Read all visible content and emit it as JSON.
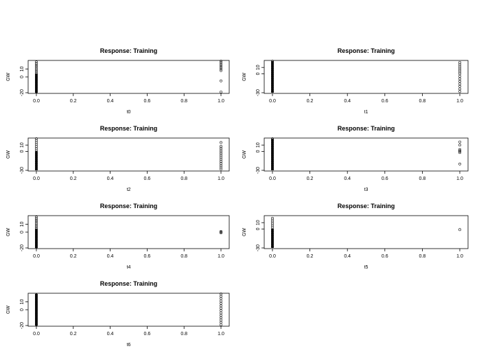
{
  "chart_data": [
    {
      "type": "scatter",
      "title": "Response: Training",
      "xlabel": "t0",
      "ylabel": "GW",
      "xlim": [
        0,
        1
      ],
      "ylim": [
        -20,
        20
      ],
      "xticks": [
        "0.0",
        "0.2",
        "0.4",
        "0.6",
        "0.8",
        "1.0"
      ],
      "yticks": [
        "-20",
        "0",
        "10"
      ],
      "points": [
        {
          "x": 0,
          "y": [
            -19,
            -17,
            -15,
            -13,
            -11,
            -9,
            -7,
            -5,
            -3,
            -1,
            1,
            3,
            5,
            7,
            9,
            11,
            13,
            15,
            17,
            19
          ]
        },
        {
          "x": 1,
          "y": [
            -19,
            -5,
            8,
            10,
            12,
            14,
            16,
            18,
            20
          ]
        }
      ]
    },
    {
      "type": "scatter",
      "title": "Response: Training",
      "xlabel": "t1",
      "ylabel": "GW",
      "xlim": [
        0,
        1
      ],
      "ylim": [
        -30,
        20
      ],
      "xticks": [
        "0.0",
        "0.2",
        "0.4",
        "0.6",
        "0.8",
        "1.0"
      ],
      "yticks": [
        "-30",
        "0",
        "10"
      ],
      "points": [
        {
          "x": 0,
          "y": [
            -28,
            -25,
            -22,
            -19,
            -16,
            -13,
            -10,
            -7,
            -4,
            -1,
            2,
            5,
            8,
            11,
            14,
            17,
            20
          ]
        },
        {
          "x": 1,
          "y": [
            -28,
            -24,
            -20,
            -16,
            -12,
            -8,
            -4,
            0,
            3,
            6,
            9,
            12,
            15,
            18
          ]
        }
      ]
    },
    {
      "type": "scatter",
      "title": "Response: Training",
      "xlabel": "t2",
      "ylabel": "GW",
      "xlim": [
        0,
        1
      ],
      "ylim": [
        -30,
        20
      ],
      "xticks": [
        "0.0",
        "0.2",
        "0.4",
        "0.6",
        "0.8",
        "1.0"
      ],
      "yticks": [
        "-30",
        "0",
        "10"
      ],
      "points": [
        {
          "x": 0,
          "y": [
            -28,
            -25,
            -22,
            -19,
            -16,
            -13,
            -10,
            -7,
            -4,
            -1,
            2,
            5,
            8,
            11,
            14,
            17,
            20
          ]
        },
        {
          "x": 1,
          "y": [
            -28,
            -25,
            -22,
            -19,
            -16,
            -13,
            -10,
            -7,
            -4,
            -1,
            2,
            5,
            8,
            14
          ]
        }
      ]
    },
    {
      "type": "scatter",
      "title": "Response: Training",
      "xlabel": "t3",
      "ylabel": "GW",
      "xlim": [
        0,
        1
      ],
      "ylim": [
        -30,
        20
      ],
      "xticks": [
        "0.0",
        "0.2",
        "0.4",
        "0.6",
        "0.8",
        "1.0"
      ],
      "yticks": [
        "-30",
        "0",
        "10"
      ],
      "points": [
        {
          "x": 0,
          "y": [
            -28,
            -25,
            -22,
            -19,
            -16,
            -13,
            -10,
            -7,
            -4,
            -1,
            2,
            5,
            8,
            11,
            14,
            17,
            20
          ]
        },
        {
          "x": 1,
          "y": [
            -20,
            -2,
            0,
            1,
            3,
            10,
            15
          ]
        }
      ]
    },
    {
      "type": "scatter",
      "title": "Response: Training",
      "xlabel": "t4",
      "ylabel": "GW",
      "xlim": [
        0,
        1
      ],
      "ylim": [
        -20,
        20
      ],
      "xticks": [
        "0.0",
        "0.2",
        "0.4",
        "0.6",
        "0.8",
        "1.0"
      ],
      "yticks": [
        "-20",
        "0",
        "10"
      ],
      "points": [
        {
          "x": 0,
          "y": [
            -19,
            -17,
            -15,
            -13,
            -11,
            -9,
            -7,
            -5,
            -3,
            -1,
            1,
            3,
            5,
            7,
            9,
            11,
            13,
            15,
            17,
            19
          ]
        },
        {
          "x": 1,
          "y": [
            -1,
            0,
            1
          ]
        }
      ]
    },
    {
      "type": "scatter",
      "title": "Response: Training",
      "xlabel": "t5",
      "ylabel": "GW",
      "xlim": [
        0,
        1
      ],
      "ylim": [
        -30,
        20
      ],
      "xticks": [
        "0.0",
        "0.2",
        "0.4",
        "0.6",
        "0.8",
        "1.0"
      ],
      "yticks": [
        "-30",
        "0",
        "10"
      ],
      "points": [
        {
          "x": 0,
          "y": [
            -28,
            -25,
            -22,
            -19,
            -16,
            -13,
            -10,
            -7,
            -4,
            -1,
            2,
            5,
            8,
            11,
            14,
            17
          ]
        },
        {
          "x": 1,
          "y": [
            -1
          ]
        }
      ]
    },
    {
      "type": "scatter",
      "title": "Response: Training",
      "xlabel": "t6",
      "ylabel": "GW",
      "xlim": [
        0,
        1
      ],
      "ylim": [
        -20,
        20
      ],
      "xticks": [
        "0.0",
        "0.2",
        "0.4",
        "0.6",
        "0.8",
        "1.0"
      ],
      "yticks": [
        "-20",
        "0",
        "10"
      ],
      "points": [
        {
          "x": 0,
          "y": [
            -19,
            -17,
            -15,
            -13,
            -11,
            -9,
            -7,
            -5,
            -3,
            -1,
            1,
            3,
            5,
            7,
            9,
            11,
            13,
            15,
            17,
            19
          ]
        },
        {
          "x": 1,
          "y": [
            -19,
            -16,
            -13,
            -10,
            -7,
            -4,
            -1,
            2,
            5,
            8,
            11,
            14,
            17,
            20
          ]
        }
      ]
    }
  ]
}
